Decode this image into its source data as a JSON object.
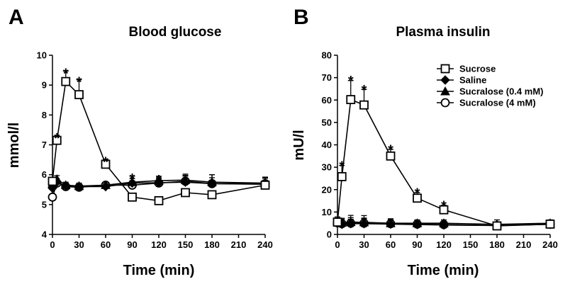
{
  "chart_data": [
    {
      "type": "line",
      "panel": "A",
      "title": "Blood glucose",
      "xlabel": "Time (min)",
      "ylabel": "mmol/l",
      "xlim": [
        0,
        240
      ],
      "ylim": [
        4,
        10
      ],
      "xticks": [
        0,
        30,
        60,
        90,
        120,
        150,
        180,
        210,
        240
      ],
      "yticks": [
        4,
        5,
        6,
        7,
        8,
        9,
        10
      ],
      "grid": false,
      "series": [
        {
          "name": "Sucrose",
          "marker": "open-square",
          "x": [
            0,
            5,
            15,
            30,
            60,
            90,
            120,
            150,
            180,
            240
          ],
          "y": [
            5.78,
            7.15,
            9.12,
            8.68,
            6.35,
            5.25,
            5.13,
            5.4,
            5.33,
            5.65
          ],
          "err": [
            0.1,
            0.15,
            0.35,
            0.5,
            0.15,
            0.12,
            0.12,
            0.1,
            0.1,
            0.1
          ]
        },
        {
          "name": "Saline",
          "marker": "filled-diamond",
          "x": [
            0,
            5,
            15,
            30,
            60,
            90,
            120,
            150,
            180,
            240
          ],
          "y": [
            5.55,
            5.75,
            5.62,
            5.6,
            5.6,
            5.72,
            5.73,
            5.75,
            5.7,
            5.68
          ],
          "err": [
            0.1,
            0.12,
            0.1,
            0.1,
            0.1,
            0.15,
            0.15,
            0.2,
            0.3,
            0.2
          ]
        },
        {
          "name": "Sucralose (0.4 mM)",
          "marker": "filled-triangle",
          "x": [
            0,
            5,
            15,
            30,
            60,
            90,
            120,
            150,
            180,
            240
          ],
          "y": [
            5.7,
            5.85,
            5.65,
            5.62,
            5.65,
            5.75,
            5.8,
            5.82,
            5.75,
            5.72
          ],
          "err": [
            0.1,
            0.12,
            0.1,
            0.1,
            0.1,
            0.2,
            0.15,
            0.2,
            0.25,
            0.2
          ]
        },
        {
          "name": "Sucralose (4 mM)",
          "marker": "open-circle",
          "x": [
            0,
            5,
            15,
            30,
            60,
            90,
            120,
            150,
            180,
            240
          ],
          "y": [
            5.25,
            5.72,
            5.6,
            5.58,
            5.65,
            5.65,
            5.72,
            5.78,
            5.7,
            5.7
          ],
          "err": [
            0.1,
            0.12,
            0.1,
            0.1,
            0.1,
            0.15,
            0.15,
            0.2,
            0.2,
            0.2
          ]
        }
      ],
      "significant": [
        {
          "x": 5,
          "y": 7.3
        },
        {
          "x": 15,
          "y": 9.47
        },
        {
          "x": 30,
          "y": 9.18
        },
        {
          "x": 60,
          "y": 6.5
        },
        {
          "x": 90,
          "y": 5.95
        },
        {
          "x": 120,
          "y": 5.9
        }
      ],
      "star_symbol": "*"
    },
    {
      "type": "line",
      "panel": "B",
      "title": "Plasma insulin",
      "xlabel": "Time (min)",
      "ylabel": "mU/l",
      "xlim": [
        0,
        240
      ],
      "ylim": [
        0,
        80
      ],
      "xticks": [
        0,
        30,
        60,
        90,
        120,
        150,
        180,
        210,
        240
      ],
      "yticks": [
        0,
        10,
        20,
        30,
        40,
        50,
        60,
        70,
        80
      ],
      "grid": false,
      "legend": "top-right",
      "series": [
        {
          "name": "Sucrose",
          "marker": "open-square",
          "x": [
            0,
            5,
            15,
            30,
            60,
            90,
            120,
            180,
            240
          ],
          "y": [
            5.5,
            25.8,
            60.2,
            57.8,
            35,
            16.2,
            11,
            3.8,
            4.6
          ],
          "err": [
            1.5,
            5,
            8.5,
            7,
            3,
            2.5,
            2,
            1,
            1
          ]
        },
        {
          "name": "Saline",
          "marker": "filled-diamond",
          "x": [
            0,
            5,
            15,
            30,
            60,
            90,
            120,
            180,
            240
          ],
          "y": [
            5,
            4.5,
            4.8,
            4.8,
            4.6,
            4.4,
            4.2,
            4,
            4.5
          ],
          "err": [
            2,
            1.5,
            2,
            2.5,
            2,
            1.5,
            1.5,
            1.5,
            1.5
          ]
        },
        {
          "name": "Sucralose (0.4 mM)",
          "marker": "filled-triangle",
          "x": [
            0,
            5,
            15,
            30,
            60,
            90,
            120,
            180,
            240
          ],
          "y": [
            5.8,
            5.2,
            5.5,
            5.4,
            5,
            5,
            5,
            4.5,
            5
          ],
          "err": [
            2,
            2,
            3,
            3,
            2,
            1.5,
            1.5,
            2,
            1.5
          ]
        },
        {
          "name": "Sucralose (4 mM)",
          "marker": "open-circle",
          "x": [
            0,
            5,
            15,
            30,
            60,
            90,
            120,
            180,
            240
          ],
          "y": [
            5.2,
            4.8,
            5,
            5,
            4.8,
            4.6,
            4.4,
            4,
            4.6
          ],
          "err": [
            2,
            2,
            2.5,
            2,
            1.5,
            1.5,
            1.5,
            1.5,
            1.5
          ]
        }
      ],
      "significant": [
        {
          "x": 5,
          "y": 31.5
        },
        {
          "x": 15,
          "y": 69.5
        },
        {
          "x": 30,
          "y": 65.5
        },
        {
          "x": 60,
          "y": 38.8
        },
        {
          "x": 90,
          "y": 19.5
        },
        {
          "x": 120,
          "y": 13.8
        }
      ],
      "star_symbol": "*"
    }
  ]
}
